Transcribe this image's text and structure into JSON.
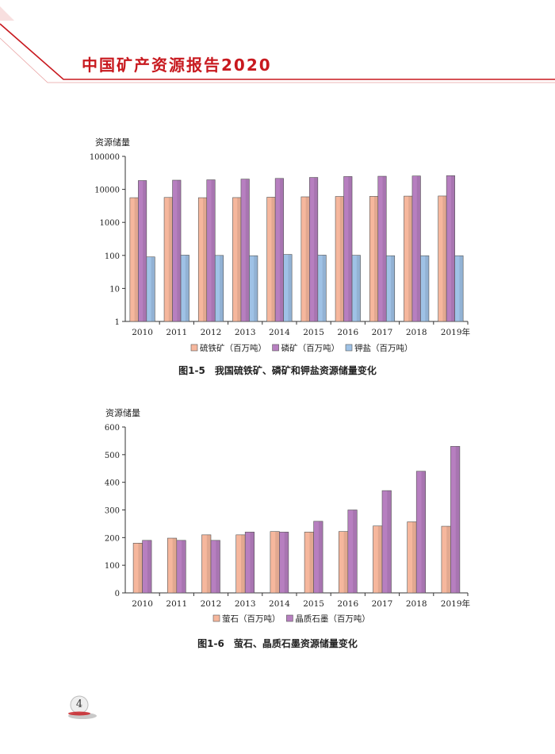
{
  "header": {
    "title": "中国矿产资源报告2020",
    "accent_color": "#c8191f"
  },
  "page_number": "4",
  "colors": {
    "salmon": "#f6b79d",
    "purple": "#b77fc0",
    "blue": "#9fc2e6",
    "axis": "#333333"
  },
  "chart_data": [
    {
      "type": "bar",
      "scale": "log",
      "ylabel": "资源储量",
      "categories": [
        "2010",
        "2011",
        "2012",
        "2013",
        "2014",
        "2015",
        "2016",
        "2017",
        "2018",
        "2019年"
      ],
      "yticks": [
        "1",
        "10",
        "100",
        "1000",
        "10000",
        "100000"
      ],
      "ylim": [
        1,
        100000
      ],
      "legend_position": "bottom",
      "grid": false,
      "series": [
        {
          "name": "硫铁矿（百万吨）",
          "color": "#f6b79d",
          "values": [
            5600,
            5700,
            5600,
            5650,
            5800,
            5950,
            6100,
            6150,
            6250,
            6300
          ]
        },
        {
          "name": "磷矿（百万吨）",
          "color": "#b77fc0",
          "values": [
            18500,
            19000,
            19500,
            20500,
            21500,
            23000,
            24500,
            25000,
            25500,
            26000
          ]
        },
        {
          "name": "钾盐（百万吨）",
          "color": "#9fc2e6",
          "values": [
            90,
            102,
            100,
            98,
            107,
            102,
            101,
            98,
            98,
            98
          ]
        }
      ],
      "caption": "图1-5　我国硫铁矿、磷矿和钾盐资源储量变化"
    },
    {
      "type": "bar",
      "scale": "linear",
      "ylabel": "资源储量",
      "categories": [
        "2010",
        "2011",
        "2012",
        "2013",
        "2014",
        "2015",
        "2016",
        "2017",
        "2018",
        "2019年"
      ],
      "yticks": [
        "0",
        "100",
        "200",
        "300",
        "400",
        "500",
        "600"
      ],
      "ylim": [
        0,
        600
      ],
      "legend_position": "bottom",
      "grid": false,
      "series": [
        {
          "name": "萤石（百万吨）",
          "color": "#f6b79d",
          "values": [
            180,
            198,
            210,
            210,
            222,
            220,
            222,
            242,
            257,
            241
          ]
        },
        {
          "name": "晶质石墨（百万吨）",
          "color": "#b77fc0",
          "values": [
            190,
            190,
            190,
            220,
            220,
            259,
            300,
            370,
            440,
            530
          ]
        }
      ],
      "caption": "图1-6　萤石、晶质石墨资源储量变化"
    }
  ]
}
